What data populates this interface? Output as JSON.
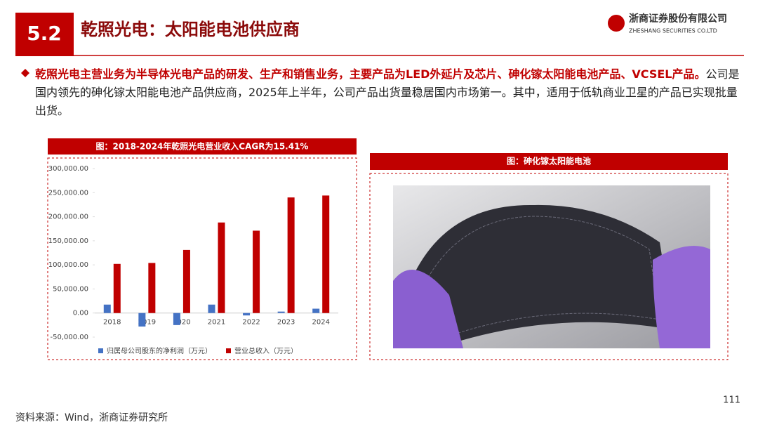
{
  "header": {
    "number": "5.2",
    "title": "乾照光电：太阳能电池供应商",
    "logo_cn": "浙商证券股份有限公司",
    "logo_en": "ZHESHANG SECURITIES CO.LTD"
  },
  "bullet": {
    "bold": "乾照光电主营业务为半导体光电产品的研发、生产和销售业务，主要产品为LED外延片及芯片、砷化镓太阳能电池产品、VCSEL产品。",
    "text": "公司是国内领先的砷化镓太阳能电池产品供应商，2025年上半年，公司产品出货量稳居国内市场第一。其中，适用于低轨商业卫星的产品已实现批量出货。"
  },
  "chart_data": {
    "type": "bar",
    "title": "图：2018-2024年乾照光电营业收入CAGR为15.41%",
    "categories": [
      "2018",
      "2019",
      "2020",
      "2021",
      "2022",
      "2023",
      "2024"
    ],
    "series": [
      {
        "name": "归属母公司股东的净利润（万元）",
        "color": "#4472c4",
        "values": [
          17500,
          -28000,
          -25000,
          17500,
          -5000,
          3000,
          9000
        ]
      },
      {
        "name": "营业总收入（万元）",
        "color": "#c00000",
        "values": [
          102000,
          104000,
          131000,
          188000,
          171000,
          240000,
          244000
        ]
      }
    ],
    "ylim": [
      -50000,
      300000
    ],
    "yticks": [
      {
        "value": -50000,
        "label": "-50,000.00"
      },
      {
        "value": 0,
        "label": "0.00"
      },
      {
        "value": 50000,
        "label": "50,000.00"
      },
      {
        "value": 100000,
        "label": "100,000.00"
      },
      {
        "value": 150000,
        "label": "150,000.00"
      },
      {
        "value": 200000,
        "label": "200,000.00"
      },
      {
        "value": 250000,
        "label": "250,000.00"
      },
      {
        "value": 300000,
        "label": "300,000.00"
      }
    ],
    "grid": false
  },
  "image_panel": {
    "title": "图：砷化镓太阳能电池"
  },
  "page_number": "111",
  "source": "资料来源：Wind，浙商证券研究所"
}
